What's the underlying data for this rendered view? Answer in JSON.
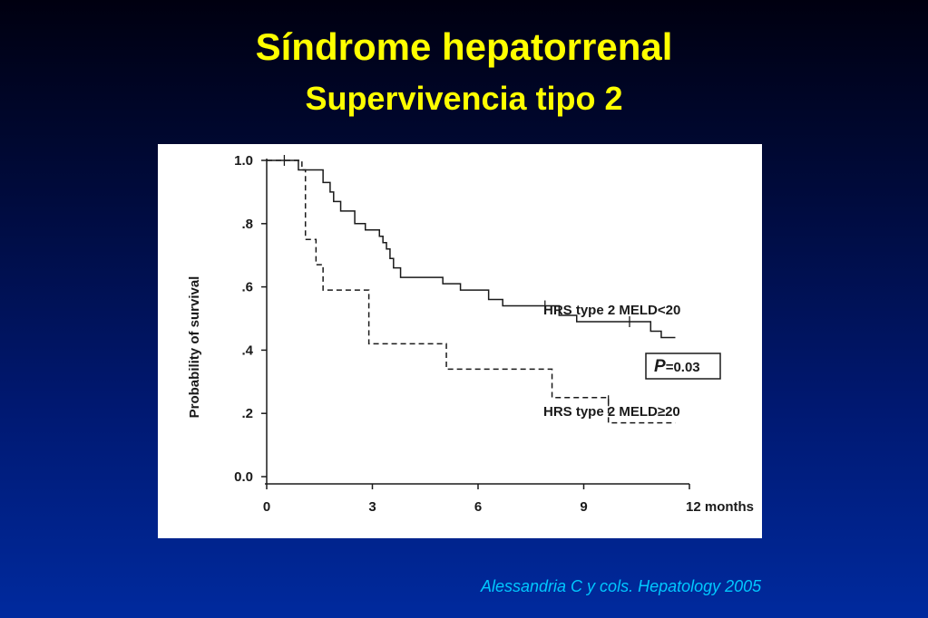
{
  "slide": {
    "title": "Síndrome hepatorrenal",
    "subtitle": "Supervivencia tipo 2",
    "citation": "Alessandria C y cols. Hepatology 2005",
    "title_color": "#ffff00",
    "citation_color": "#00c8ff"
  },
  "chart_data": {
    "type": "line",
    "step": true,
    "ylabel": "Probability of survival",
    "xlim": [
      0,
      12
    ],
    "ylim": [
      0,
      1
    ],
    "x_ticks": [
      "0",
      "3",
      "6",
      "9",
      "12 months"
    ],
    "x_tick_values": [
      0,
      3,
      6,
      9,
      12
    ],
    "y_ticks": [
      "0.0",
      ".2",
      ".4",
      ".6",
      ".8",
      "1.0"
    ],
    "y_tick_values": [
      0,
      0.2,
      0.4,
      0.6,
      0.8,
      1.0
    ],
    "pvalue_label": "P",
    "pvalue_value": "=0.03",
    "series": [
      {
        "name": "HRS type 2 MELD<20",
        "style": "solid",
        "points": [
          [
            0,
            1.0
          ],
          [
            0.9,
            0.97
          ],
          [
            1.6,
            0.93
          ],
          [
            1.8,
            0.9
          ],
          [
            1.9,
            0.87
          ],
          [
            2.1,
            0.84
          ],
          [
            2.5,
            0.8
          ],
          [
            2.8,
            0.78
          ],
          [
            3.2,
            0.76
          ],
          [
            3.3,
            0.74
          ],
          [
            3.4,
            0.72
          ],
          [
            3.5,
            0.69
          ],
          [
            3.6,
            0.66
          ],
          [
            3.8,
            0.63
          ],
          [
            5.0,
            0.61
          ],
          [
            5.5,
            0.59
          ],
          [
            6.3,
            0.56
          ],
          [
            6.7,
            0.54
          ],
          [
            8.3,
            0.51
          ],
          [
            8.8,
            0.49
          ],
          [
            10.9,
            0.46
          ],
          [
            11.2,
            0.44
          ],
          [
            11.6,
            0.44
          ]
        ],
        "censored": [
          [
            0.5,
            1.0
          ],
          [
            7.9,
            0.54
          ],
          [
            10.3,
            0.49
          ]
        ]
      },
      {
        "name": "HRS type 2 MELD≥20",
        "style": "dashed",
        "points": [
          [
            0,
            1.0
          ],
          [
            1.0,
            0.97
          ],
          [
            1.1,
            0.75
          ],
          [
            1.4,
            0.67
          ],
          [
            1.6,
            0.59
          ],
          [
            2.9,
            0.42
          ],
          [
            5.1,
            0.34
          ],
          [
            8.1,
            0.25
          ],
          [
            9.7,
            0.17
          ],
          [
            11.6,
            0.17
          ]
        ],
        "censored": [
          [
            9.7,
            0.24
          ]
        ]
      }
    ]
  }
}
